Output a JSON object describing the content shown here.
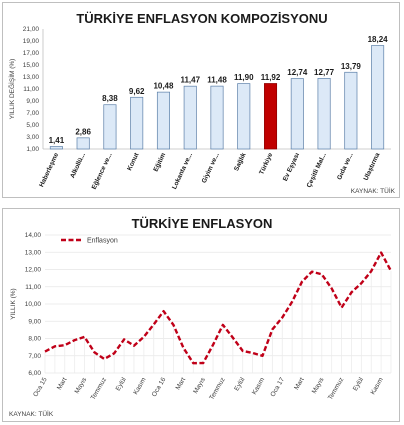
{
  "chart_data": [
    {
      "type": "bar",
      "title": "TÜRKİYE ENFLASYON KOMPOZİSYONU",
      "ylabel": "YILLIK DEĞİŞİM (%)",
      "source": "KAYNAK: TÜİK",
      "ylim": [
        1.0,
        21.0
      ],
      "yticks": [
        "1,00",
        "3,00",
        "5,00",
        "7,00",
        "9,00",
        "11,00",
        "13,00",
        "15,00",
        "17,00",
        "19,00",
        "21,00"
      ],
      "categories": [
        "Haberleşme",
        "Alkollü...",
        "Eğlence ve...",
        "Konut",
        "Eğitim",
        "Lokanta ve...",
        "Giyim ve...",
        "Sağlık",
        "Türkiye",
        "Ev Eşyası",
        "Çeşitli Mal...",
        "Gıda ve...",
        "Ulaştırma"
      ],
      "values": [
        1.41,
        2.86,
        8.38,
        9.62,
        10.48,
        11.47,
        11.48,
        11.9,
        11.92,
        12.74,
        12.77,
        13.79,
        18.24
      ],
      "value_labels": [
        "1,41",
        "2,86",
        "8,38",
        "9,62",
        "10,48",
        "11,47",
        "11,48",
        "11,90",
        "11,92",
        "12,74",
        "12,77",
        "13,79",
        "18,24"
      ],
      "highlight_index": 8,
      "colors": {
        "bar_fill": "#dce9f7",
        "bar_stroke": "#5b7fa8",
        "highlight_fill": "#c00000",
        "highlight_stroke": "#8b0000"
      },
      "grid": false
    },
    {
      "type": "line",
      "title": "TÜRKİYE ENFLASYON",
      "ylabel": "YILLIK (%)",
      "source": "KAYNAK: TÜİK",
      "ylim": [
        6.0,
        14.0
      ],
      "yticks": [
        "6,00",
        "7,00",
        "8,00",
        "9,00",
        "10,00",
        "11,00",
        "12,00",
        "13,00",
        "14,00"
      ],
      "xtick_labels": [
        "Oca 15",
        "Mart",
        "Mayıs",
        "Temmuz",
        "Eylül",
        "Kasım",
        "Oca 16",
        "Mart",
        "Mayıs",
        "Temmuz",
        "Eylül",
        "Kasım",
        "Oca 17",
        "Mart",
        "Mayıs",
        "Temmuz",
        "Eylül",
        "Kasım"
      ],
      "series": [
        {
          "name": "Enflasyon",
          "color": "#c00018",
          "dashed": true,
          "values": [
            7.24,
            7.55,
            7.61,
            7.91,
            8.09,
            7.2,
            6.81,
            7.14,
            7.95,
            7.58,
            8.1,
            8.81,
            9.58,
            8.78,
            7.46,
            6.57,
            6.58,
            7.64,
            8.79,
            8.05,
            7.28,
            7.16,
            7.0,
            8.53,
            9.22,
            10.13,
            11.29,
            11.87,
            11.72,
            10.9,
            9.79,
            10.68,
            11.2,
            11.9,
            12.98,
            11.92
          ]
        }
      ],
      "grid": true,
      "legend_position": "top-left"
    }
  ]
}
